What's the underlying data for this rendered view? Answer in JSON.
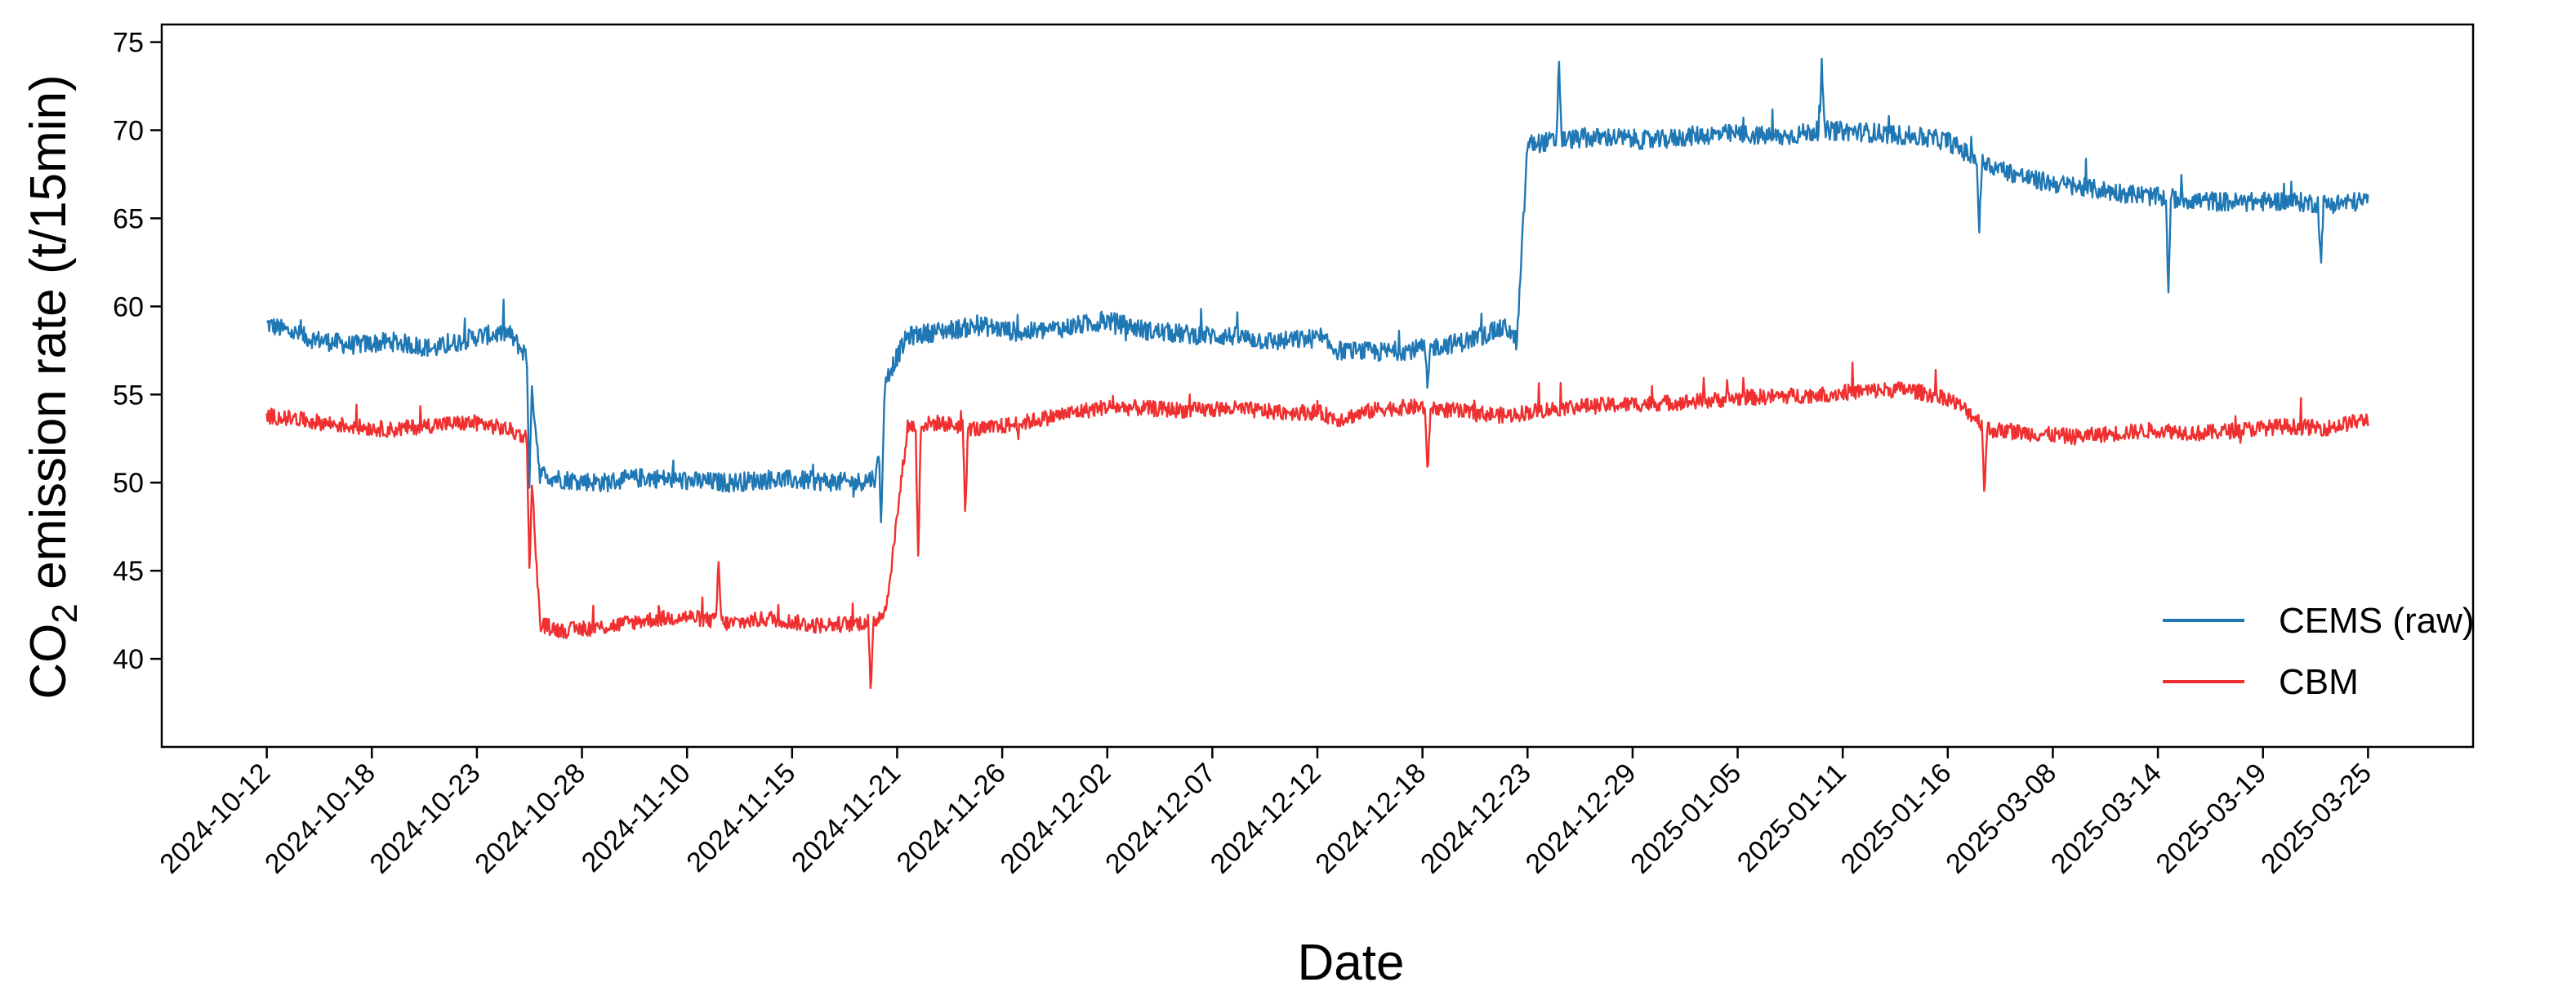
{
  "chart_data": {
    "type": "line",
    "title": "",
    "xlabel": "Date",
    "ylabel": {
      "main": "CO",
      "sub": "2",
      "rest": " emission rate (t/15min)"
    },
    "ylim": [
      35,
      76
    ],
    "yticks": [
      40,
      45,
      50,
      55,
      60,
      65,
      70,
      75
    ],
    "categories": [
      "2024-10-12",
      "2024-10-18",
      "2024-10-23",
      "2024-10-28",
      "2024-11-10",
      "2024-11-15",
      "2024-11-21",
      "2024-11-26",
      "2024-12-02",
      "2024-12-07",
      "2024-12-12",
      "2024-12-18",
      "2024-12-23",
      "2024-12-29",
      "2025-01-05",
      "2025-01-11",
      "2025-01-16",
      "2025-03-08",
      "2025-03-14",
      "2025-03-19",
      "2025-03-25"
    ],
    "xlim": [
      -1,
      21
    ],
    "legend": "lower-right",
    "grid": false,
    "series": [
      {
        "name": "CEMS (raw)",
        "color": "#1f77b4",
        "x": [
          0,
          0.4,
          0.8,
          1.2,
          1.6,
          2.0,
          2.3,
          2.5,
          2.6,
          2.8,
          3.2,
          3.6,
          4.0,
          4.4,
          4.8,
          5.2,
          5.6,
          5.8,
          5.9,
          6.1,
          6.4,
          6.8,
          7.2,
          7.6,
          8.0,
          8.4,
          8.8,
          9.2,
          9.6,
          10.0,
          10.2,
          10.6,
          11.0,
          11.4,
          11.8,
          11.9,
          12.0,
          12.4,
          12.8,
          13.2,
          13.6,
          14.0,
          14.4,
          14.8,
          15.2,
          15.6,
          16.0,
          16.2,
          16.4,
          16.8,
          17.2,
          17.6,
          18.0,
          18.4,
          18.8,
          19.2,
          19.6,
          20.0
        ],
        "y": [
          59.0,
          58.2,
          57.8,
          58.0,
          57.6,
          58.3,
          58.5,
          57.0,
          50.5,
          50.2,
          50.0,
          50.3,
          50.1,
          50.0,
          50.2,
          50.1,
          50.0,
          50.3,
          56.0,
          58.3,
          58.6,
          58.9,
          58.5,
          58.8,
          59.2,
          58.6,
          58.4,
          58.3,
          58.0,
          58.2,
          57.5,
          57.4,
          57.6,
          58.0,
          58.8,
          58.0,
          69.2,
          69.5,
          69.6,
          69.4,
          69.7,
          69.8,
          69.6,
          70.0,
          69.9,
          69.7,
          69.4,
          68.6,
          68.0,
          67.2,
          66.8,
          66.5,
          66.2,
          66.0,
          65.9,
          66.0,
          65.8,
          66.0
        ]
      },
      {
        "name": "CBM",
        "color": "#f03030",
        "x": [
          0,
          0.4,
          0.8,
          1.2,
          1.6,
          2.0,
          2.3,
          2.5,
          2.6,
          2.8,
          3.2,
          3.6,
          4.0,
          4.4,
          4.8,
          5.2,
          5.6,
          5.8,
          5.9,
          6.1,
          6.4,
          6.8,
          7.2,
          7.6,
          8.0,
          8.4,
          8.8,
          9.2,
          9.6,
          10.0,
          10.2,
          10.6,
          11.0,
          11.4,
          11.8,
          12.0,
          12.4,
          12.8,
          13.2,
          13.6,
          14.0,
          14.4,
          14.8,
          15.2,
          15.6,
          16.0,
          16.2,
          16.4,
          16.8,
          17.2,
          17.6,
          18.0,
          18.4,
          18.8,
          19.2,
          19.6,
          20.0
        ],
        "y": [
          53.8,
          53.5,
          53.2,
          53.0,
          53.3,
          53.4,
          53.0,
          52.5,
          42.0,
          41.6,
          41.8,
          42.2,
          42.4,
          42.0,
          42.3,
          41.9,
          42.0,
          42.2,
          43.0,
          53.2,
          53.4,
          53.0,
          53.4,
          53.9,
          54.3,
          54.2,
          54.1,
          54.2,
          54.0,
          54.0,
          53.6,
          54.2,
          54.3,
          54.0,
          53.8,
          54.0,
          54.3,
          54.4,
          54.5,
          54.6,
          54.8,
          54.9,
          55.0,
          55.2,
          55.3,
          54.8,
          54.0,
          53.0,
          52.8,
          52.6,
          52.8,
          53.0,
          52.8,
          53.0,
          53.2,
          53.1,
          53.6
        ]
      }
    ],
    "annotations": [
      {
        "series": 0,
        "x": 2.5,
        "y": 50.0
      },
      {
        "series": 0,
        "x": 5.85,
        "y": 47.6
      },
      {
        "series": 0,
        "x": 11.05,
        "y": 55.0
      },
      {
        "series": 0,
        "x": 12.3,
        "y": 74.0
      },
      {
        "series": 0,
        "x": 14.8,
        "y": 73.6
      },
      {
        "series": 0,
        "x": 16.3,
        "y": 64.2
      },
      {
        "series": 0,
        "x": 18.1,
        "y": 61.0
      },
      {
        "series": 0,
        "x": 19.55,
        "y": 62.3
      },
      {
        "series": 1,
        "x": 2.5,
        "y": 45.2
      },
      {
        "series": 1,
        "x": 5.75,
        "y": 37.7
      },
      {
        "series": 1,
        "x": 6.2,
        "y": 45.6
      },
      {
        "series": 1,
        "x": 6.65,
        "y": 48.0
      },
      {
        "series": 1,
        "x": 11.05,
        "y": 50.0
      },
      {
        "series": 1,
        "x": 16.35,
        "y": 49.2
      },
      {
        "series": 1,
        "x": 4.3,
        "y": 45.6
      }
    ]
  }
}
